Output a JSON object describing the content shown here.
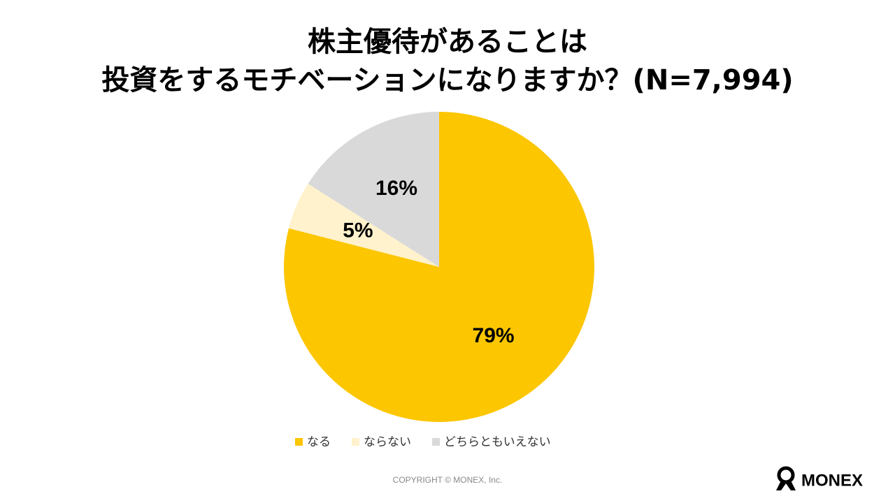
{
  "chart_data": {
    "type": "pie",
    "title": [
      "株主優待があることは",
      "投資をするモチベーションになりますか？(N=7,994)"
    ],
    "categories": [
      "なる",
      "ならない",
      "どちらともいえない"
    ],
    "values": [
      79,
      5,
      16
    ],
    "value_labels": [
      "79%",
      "5%",
      "16%"
    ],
    "colors": [
      "#fcc600",
      "#fff2cc",
      "#d9d9d9"
    ]
  },
  "footer": {
    "copyright": "COPYRIGHT © MONEX, Inc.",
    "logo": "MONEX"
  }
}
